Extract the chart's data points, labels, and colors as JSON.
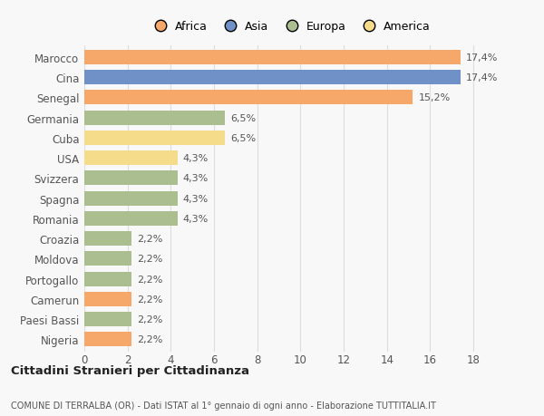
{
  "categories": [
    "Marocco",
    "Cina",
    "Senegal",
    "Germania",
    "Cuba",
    "USA",
    "Svizzera",
    "Spagna",
    "Romania",
    "Croazia",
    "Moldova",
    "Portogallo",
    "Camerun",
    "Paesi Bassi",
    "Nigeria"
  ],
  "values": [
    17.4,
    17.4,
    15.2,
    6.5,
    6.5,
    4.3,
    4.3,
    4.3,
    4.3,
    2.2,
    2.2,
    2.2,
    2.2,
    2.2,
    2.2
  ],
  "labels": [
    "17,4%",
    "17,4%",
    "15,2%",
    "6,5%",
    "6,5%",
    "4,3%",
    "4,3%",
    "4,3%",
    "4,3%",
    "2,2%",
    "2,2%",
    "2,2%",
    "2,2%",
    "2,2%",
    "2,2%"
  ],
  "continents": [
    "Africa",
    "Asia",
    "Africa",
    "Europa",
    "America",
    "America",
    "Europa",
    "Europa",
    "Europa",
    "Europa",
    "Europa",
    "Europa",
    "Africa",
    "Europa",
    "Africa"
  ],
  "continent_colors": {
    "Africa": "#F5A86A",
    "Asia": "#7090C8",
    "Europa": "#ABBE90",
    "America": "#F5DC8A"
  },
  "legend_items": [
    "Africa",
    "Asia",
    "Europa",
    "America"
  ],
  "legend_colors": [
    "#F5A86A",
    "#7090C8",
    "#ABBE90",
    "#F5DC8A"
  ],
  "xlim": [
    0,
    19
  ],
  "xticks": [
    0,
    2,
    4,
    6,
    8,
    10,
    12,
    14,
    16,
    18
  ],
  "title": "Cittadini Stranieri per Cittadinanza",
  "subtitle": "COMUNE DI TERRALBA (OR) - Dati ISTAT al 1° gennaio di ogni anno - Elaborazione TUTTITALIA.IT",
  "background_color": "#f8f8f8",
  "bar_height": 0.72,
  "grid_color": "#dddddd",
  "label_fontsize": 8,
  "ytick_fontsize": 8.5,
  "xtick_fontsize": 8.5
}
